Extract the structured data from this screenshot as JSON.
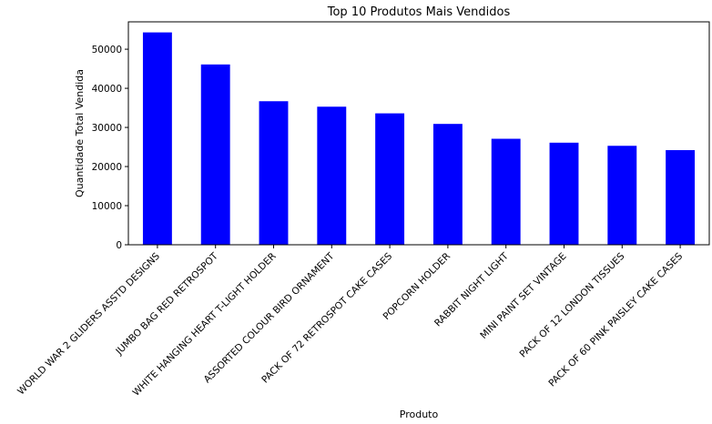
{
  "chart_data": {
    "type": "bar",
    "title": "Top 10 Produtos Mais Vendidos",
    "xlabel": "Produto",
    "ylabel": "Quantidade Total Vendida",
    "categories": [
      "WORLD WAR 2 GLIDERS ASSTD DESIGNS",
      "JUMBO BAG RED RETROSPOT",
      "WHITE HANGING HEART T-LIGHT HOLDER",
      "ASSORTED COLOUR BIRD ORNAMENT",
      "PACK OF 72 RETROSPOT CAKE CASES",
      "POPCORN HOLDER",
      "RABBIT NIGHT LIGHT",
      "MINI PAINT SET VINTAGE",
      "PACK OF 12 LONDON TISSUES",
      "PACK OF 60 PINK PAISLEY CAKE CASES"
    ],
    "values": [
      54300,
      46100,
      36700,
      35300,
      33600,
      30900,
      27100,
      26100,
      25300,
      24200
    ],
    "yticks": [
      0,
      10000,
      20000,
      30000,
      40000,
      50000
    ],
    "ylim": [
      0,
      57000
    ],
    "bar_color": "#0000ff",
    "grid": false,
    "legend": false
  }
}
